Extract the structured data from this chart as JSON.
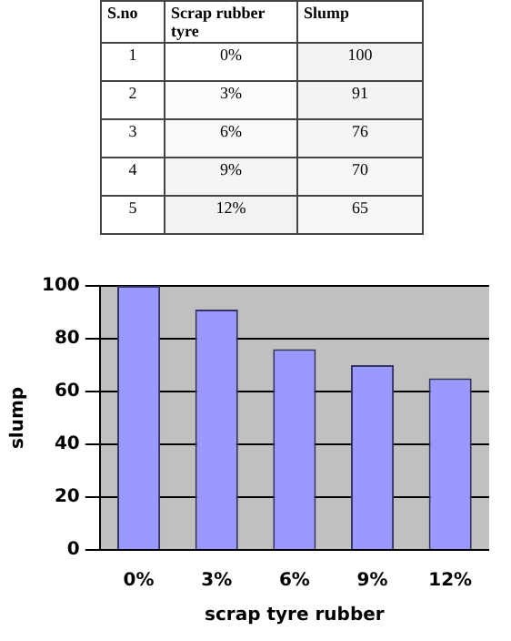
{
  "chart_data": [
    {
      "type": "heatmap",
      "ylabel": "S.no",
      "categories": [
        "Scrap rubber tyre",
        "Slump"
      ],
      "y_categories": [
        "1",
        "2",
        "3",
        "4",
        "5"
      ],
      "cells": [
        [
          0,
          100
        ],
        [
          3,
          91
        ],
        [
          6,
          76
        ],
        [
          9,
          70
        ],
        [
          12,
          65
        ]
      ],
      "cell_labels": [
        [
          "0%",
          "100"
        ],
        [
          "3%",
          "91"
        ],
        [
          "6%",
          "76"
        ],
        [
          "9%",
          "70"
        ],
        [
          "12%",
          "65"
        ]
      ]
    },
    {
      "type": "bar",
      "xlabel": "scrap tyre rubber",
      "ylabel": "slump",
      "categories": [
        "0%",
        "3%",
        "6%",
        "9%",
        "12%"
      ],
      "values": [
        100,
        91,
        76,
        70,
        65
      ],
      "color": "#9999ff",
      "ylim": [
        0,
        100
      ],
      "yticks": [
        0,
        20,
        40,
        60,
        80,
        100
      ],
      "grid": "y"
    }
  ]
}
